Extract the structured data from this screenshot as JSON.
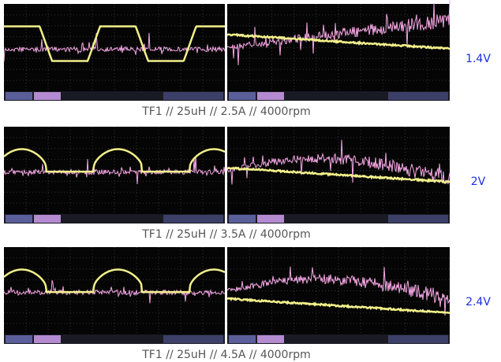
{
  "rows": [
    {
      "caption": "TF1 // 25uH // 2.5A // 4000rpm",
      "voltage": "1.4V"
    },
    {
      "caption": "TF1 // 25uH // 3.5A // 4000rpm",
      "voltage": "2V"
    },
    {
      "caption": "TF1 // 25uH // 4.5A // 4000rpm",
      "voltage": "2.4V"
    }
  ]
}
